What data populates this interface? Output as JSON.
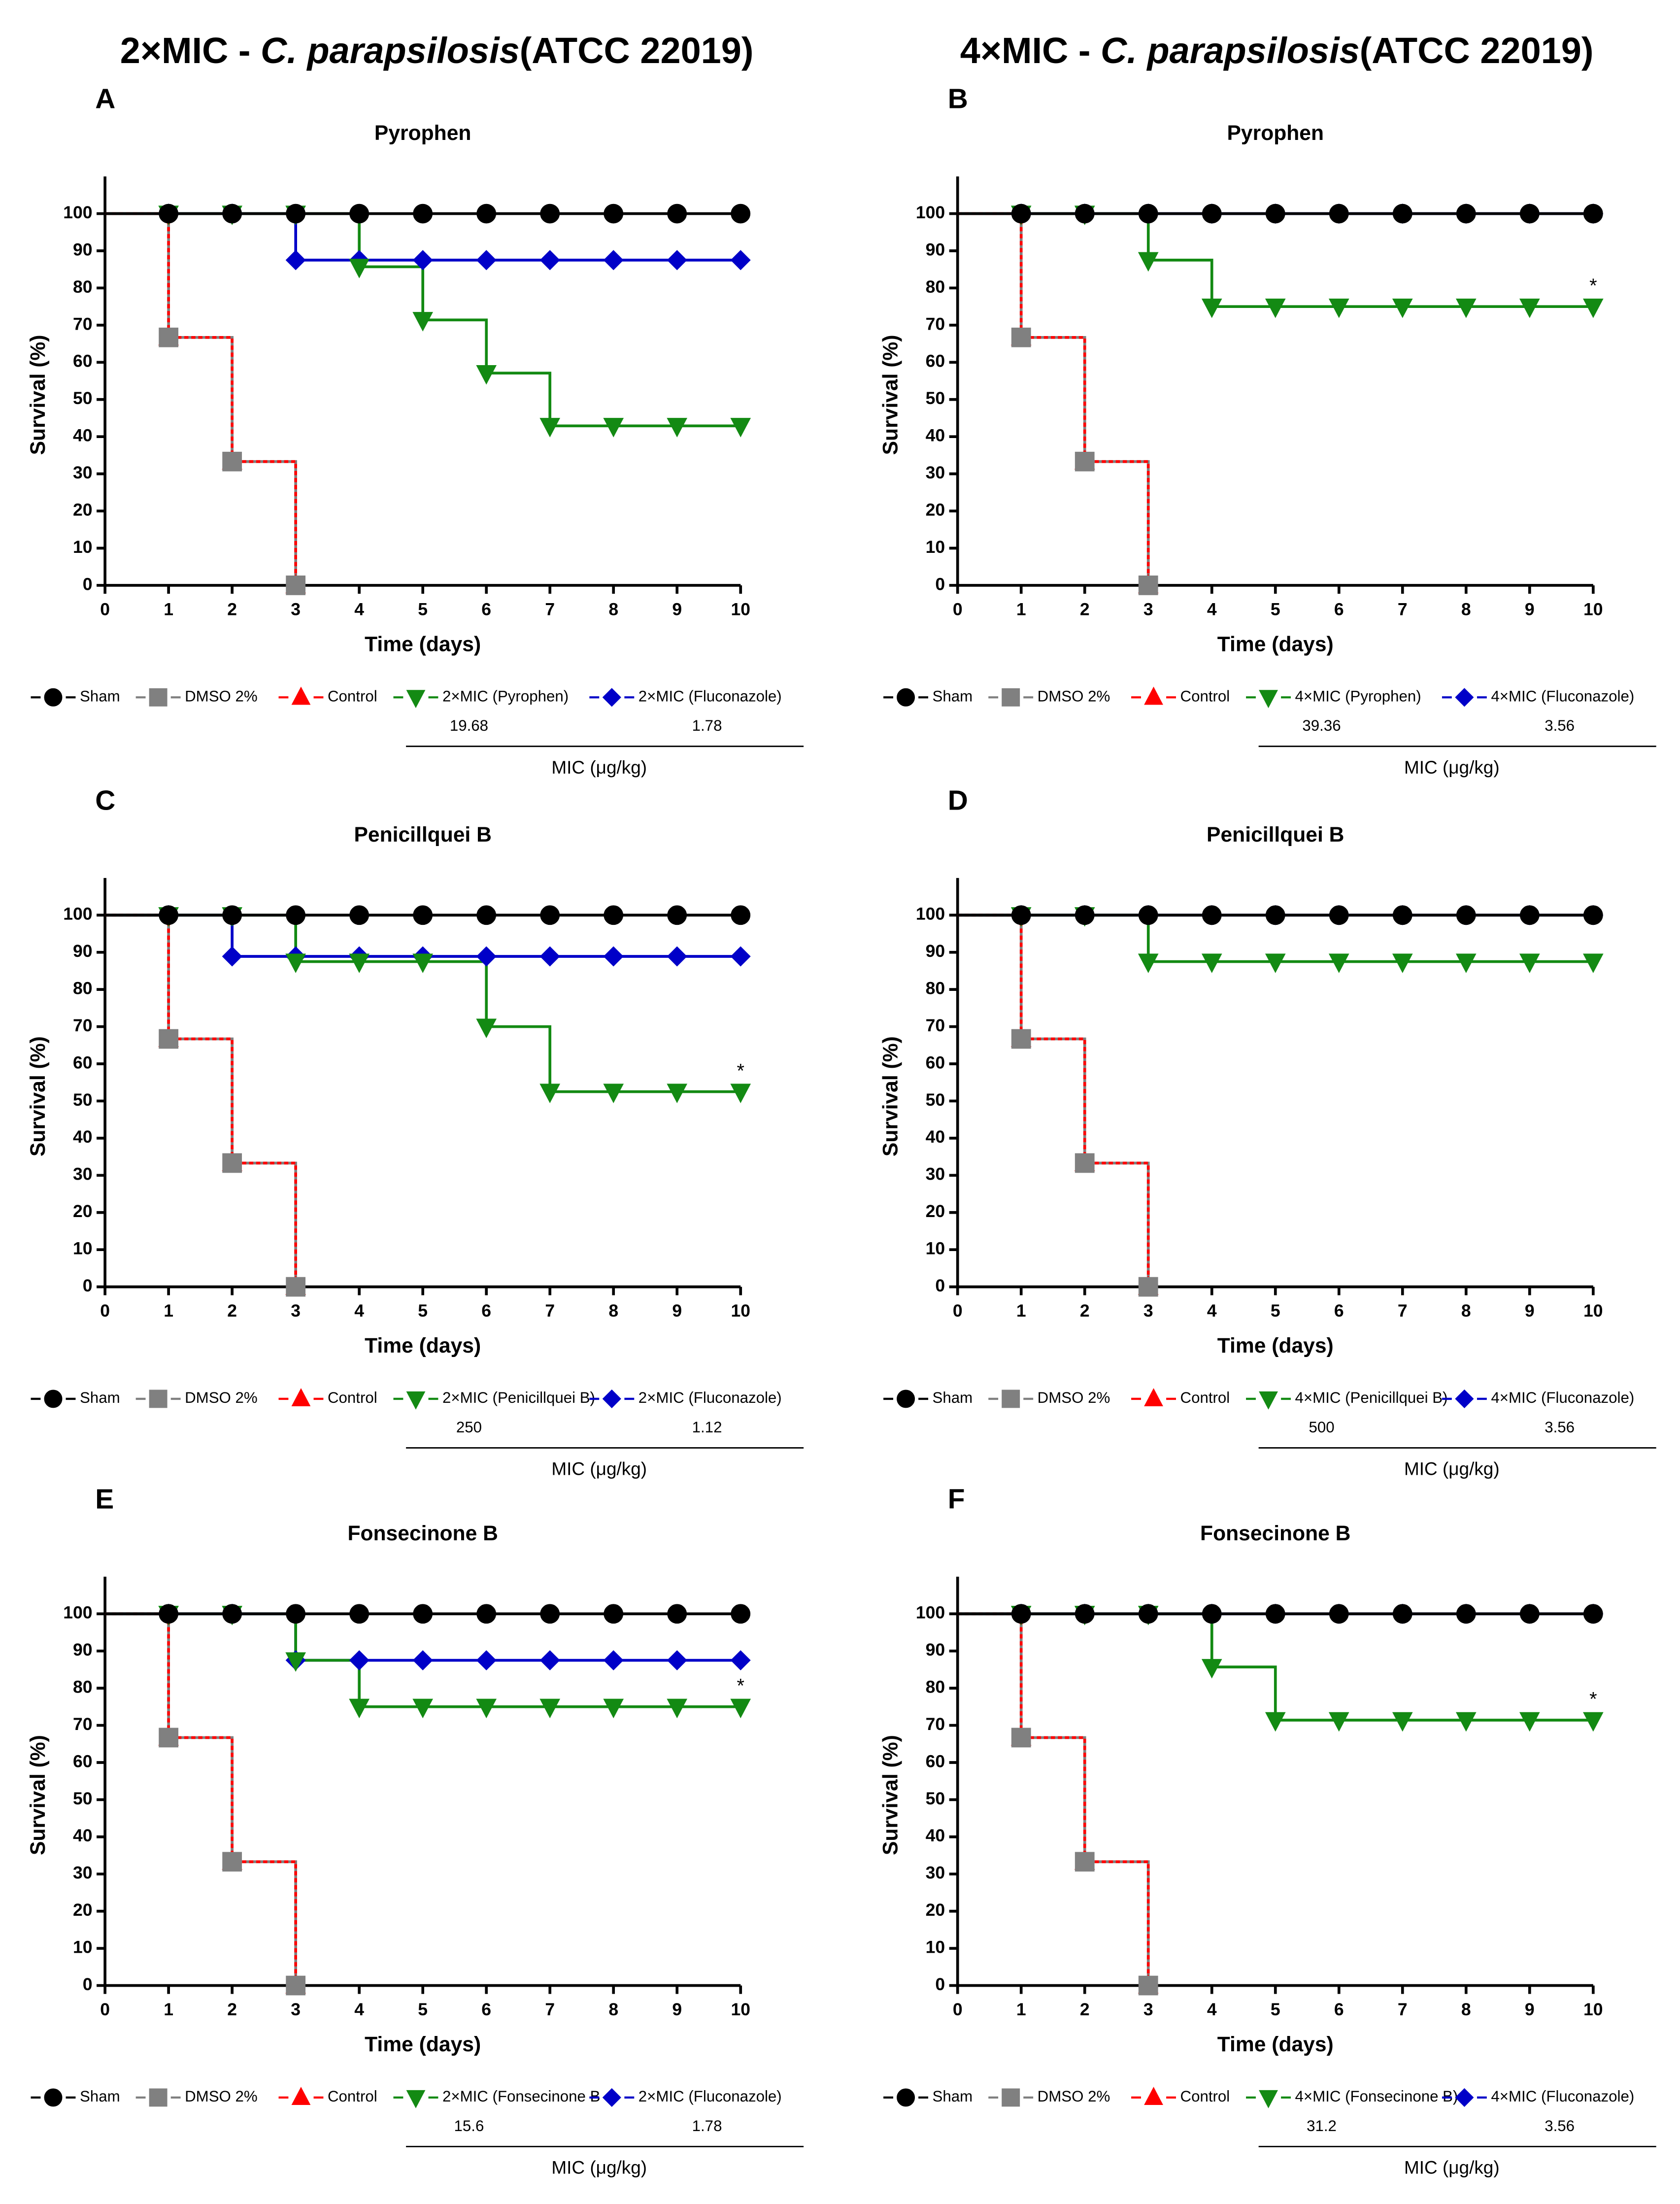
{
  "column_titles": [
    [
      "2×MIC - ",
      "C. parapsilosis",
      "(ATCC 22019)"
    ],
    [
      "4×MIC - ",
      "C. parapsilosis",
      "(ATCC 22019)"
    ]
  ],
  "chart_data": [
    {
      "type": "line",
      "panel": "A",
      "title": "Pyrophen",
      "xlabel": "Time (days)",
      "ylabel": "Survival (%)",
      "x": [
        0,
        1,
        2,
        3,
        4,
        5,
        6,
        7,
        8,
        9,
        10
      ],
      "xlim": [
        0,
        10
      ],
      "xticks": [
        0,
        1,
        2,
        3,
        4,
        5,
        6,
        7,
        8,
        9,
        10
      ],
      "ylim": [
        0,
        110
      ],
      "yticks": [
        0,
        10,
        20,
        30,
        40,
        50,
        60,
        70,
        80,
        90,
        100
      ],
      "series": [
        {
          "name": "Sham",
          "color": "#000000",
          "marker": "circle",
          "values": [
            100,
            100,
            100,
            100,
            100,
            100,
            100,
            100,
            100,
            100,
            100
          ]
        },
        {
          "name": "DMSO 2%",
          "color": "#808080",
          "marker": "square",
          "values": [
            100,
            66.7,
            33.3,
            0,
            null,
            null,
            null,
            null,
            null,
            null,
            null
          ]
        },
        {
          "name": "Control",
          "color": "#ff0000",
          "marker": "triangle-up",
          "linestyle": "dashed",
          "values": [
            100,
            66.7,
            33.3,
            0,
            null,
            null,
            null,
            null,
            null,
            null,
            null
          ]
        },
        {
          "name": "2×MIC (Pyrophen)",
          "color": "#138a13",
          "marker": "triangle-down",
          "values": [
            100,
            100,
            100,
            100,
            85.7,
            71.4,
            57.1,
            42.9,
            42.9,
            42.9,
            42.9
          ]
        },
        {
          "name": "2×MIC (Fluconazole)",
          "color": "#0000c8",
          "marker": "diamond",
          "values": [
            100,
            100,
            100,
            87.5,
            87.5,
            87.5,
            87.5,
            87.5,
            87.5,
            87.5,
            87.5
          ]
        }
      ],
      "mic_values": [
        19.68,
        1.78
      ],
      "mic_label": "MIC (μg/kg)"
    },
    {
      "type": "line",
      "panel": "B",
      "title": "Pyrophen",
      "xlabel": "Time (days)",
      "ylabel": "Survival (%)",
      "x": [
        0,
        1,
        2,
        3,
        4,
        5,
        6,
        7,
        8,
        9,
        10
      ],
      "xlim": [
        0,
        10
      ],
      "xticks": [
        0,
        1,
        2,
        3,
        4,
        5,
        6,
        7,
        8,
        9,
        10
      ],
      "ylim": [
        0,
        110
      ],
      "yticks": [
        0,
        10,
        20,
        30,
        40,
        50,
        60,
        70,
        80,
        90,
        100
      ],
      "series": [
        {
          "name": "Sham",
          "color": "#000000",
          "marker": "circle",
          "values": [
            100,
            100,
            100,
            100,
            100,
            100,
            100,
            100,
            100,
            100,
            100
          ]
        },
        {
          "name": "DMSO 2%",
          "color": "#808080",
          "marker": "square",
          "values": [
            100,
            66.7,
            33.3,
            0,
            null,
            null,
            null,
            null,
            null,
            null,
            null
          ]
        },
        {
          "name": "Control",
          "color": "#ff0000",
          "marker": "triangle-up",
          "linestyle": "dashed",
          "values": [
            100,
            66.7,
            33.3,
            0,
            null,
            null,
            null,
            null,
            null,
            null,
            null
          ]
        },
        {
          "name": "4×MIC (Pyrophen)",
          "color": "#138a13",
          "marker": "triangle-down",
          "values": [
            100,
            100,
            100,
            87.5,
            75,
            75,
            75,
            75,
            75,
            75,
            75
          ]
        },
        {
          "name": "4×MIC (Fluconazole)",
          "color": "#0000c8",
          "marker": "diamond",
          "values": [
            100,
            100,
            100,
            100,
            100,
            100,
            100,
            100,
            100,
            100,
            100
          ]
        }
      ],
      "mic_values": [
        39.36,
        3.56
      ],
      "mic_label": "MIC (μg/kg)",
      "annotations": [
        {
          "text": "*",
          "x": 10,
          "y": 75
        }
      ]
    },
    {
      "type": "line",
      "panel": "C",
      "title": "Penicillquei B",
      "xlabel": "Time (days)",
      "ylabel": "Survival (%)",
      "x": [
        0,
        1,
        2,
        3,
        4,
        5,
        6,
        7,
        8,
        9,
        10
      ],
      "xlim": [
        0,
        10
      ],
      "xticks": [
        0,
        1,
        2,
        3,
        4,
        5,
        6,
        7,
        8,
        9,
        10
      ],
      "ylim": [
        0,
        110
      ],
      "yticks": [
        0,
        10,
        20,
        30,
        40,
        50,
        60,
        70,
        80,
        90,
        100
      ],
      "series": [
        {
          "name": "Sham",
          "color": "#000000",
          "marker": "circle",
          "values": [
            100,
            100,
            100,
            100,
            100,
            100,
            100,
            100,
            100,
            100,
            100
          ]
        },
        {
          "name": "DMSO 2%",
          "color": "#808080",
          "marker": "square",
          "values": [
            100,
            66.7,
            33.3,
            0,
            null,
            null,
            null,
            null,
            null,
            null,
            null
          ]
        },
        {
          "name": "Control",
          "color": "#ff0000",
          "marker": "triangle-up",
          "linestyle": "dashed",
          "values": [
            100,
            66.7,
            33.3,
            0,
            null,
            null,
            null,
            null,
            null,
            null,
            null
          ]
        },
        {
          "name": "2×MIC (Penicillquei B)",
          "color": "#138a13",
          "marker": "triangle-down",
          "values": [
            100,
            100,
            100,
            87.5,
            87.5,
            87.5,
            70,
            52.5,
            52.5,
            52.5,
            52.5
          ]
        },
        {
          "name": "2×MIC (Fluconazole)",
          "color": "#0000c8",
          "marker": "diamond",
          "values": [
            100,
            100,
            88.9,
            88.9,
            88.9,
            88.9,
            88.9,
            88.9,
            88.9,
            88.9,
            88.9
          ]
        }
      ],
      "mic_values": [
        250,
        1.12
      ],
      "mic_label": "MIC (μg/kg)",
      "annotations": [
        {
          "text": "*",
          "x": 10,
          "y": 52.5
        }
      ]
    },
    {
      "type": "line",
      "panel": "D",
      "title": "Penicillquei B",
      "xlabel": "Time (days)",
      "ylabel": "Survival (%)",
      "x": [
        0,
        1,
        2,
        3,
        4,
        5,
        6,
        7,
        8,
        9,
        10
      ],
      "xlim": [
        0,
        10
      ],
      "xticks": [
        0,
        1,
        2,
        3,
        4,
        5,
        6,
        7,
        8,
        9,
        10
      ],
      "ylim": [
        0,
        110
      ],
      "yticks": [
        0,
        10,
        20,
        30,
        40,
        50,
        60,
        70,
        80,
        90,
        100
      ],
      "series": [
        {
          "name": "Sham",
          "color": "#000000",
          "marker": "circle",
          "values": [
            100,
            100,
            100,
            100,
            100,
            100,
            100,
            100,
            100,
            100,
            100
          ]
        },
        {
          "name": "DMSO 2%",
          "color": "#808080",
          "marker": "square",
          "values": [
            100,
            66.7,
            33.3,
            0,
            null,
            null,
            null,
            null,
            null,
            null,
            null
          ]
        },
        {
          "name": "Control",
          "color": "#ff0000",
          "marker": "triangle-up",
          "linestyle": "dashed",
          "values": [
            100,
            66.7,
            33.3,
            0,
            null,
            null,
            null,
            null,
            null,
            null,
            null
          ]
        },
        {
          "name": "4×MIC (Penicillquei B)",
          "color": "#138a13",
          "marker": "triangle-down",
          "values": [
            100,
            100,
            100,
            87.5,
            87.5,
            87.5,
            87.5,
            87.5,
            87.5,
            87.5,
            87.5
          ]
        },
        {
          "name": "4×MIC (Fluconazole)",
          "color": "#0000c8",
          "marker": "diamond",
          "values": [
            100,
            100,
            100,
            100,
            100,
            100,
            100,
            100,
            100,
            100,
            100
          ]
        }
      ],
      "mic_values": [
        500,
        3.56
      ],
      "mic_label": "MIC (μg/kg)"
    },
    {
      "type": "line",
      "panel": "E",
      "title": "Fonsecinone B",
      "xlabel": "Time (days)",
      "ylabel": "Survival (%)",
      "x": [
        0,
        1,
        2,
        3,
        4,
        5,
        6,
        7,
        8,
        9,
        10
      ],
      "xlim": [
        0,
        10
      ],
      "xticks": [
        0,
        1,
        2,
        3,
        4,
        5,
        6,
        7,
        8,
        9,
        10
      ],
      "ylim": [
        0,
        110
      ],
      "yticks": [
        0,
        10,
        20,
        30,
        40,
        50,
        60,
        70,
        80,
        90,
        100
      ],
      "series": [
        {
          "name": "Sham",
          "color": "#000000",
          "marker": "circle",
          "values": [
            100,
            100,
            100,
            100,
            100,
            100,
            100,
            100,
            100,
            100,
            100
          ]
        },
        {
          "name": "DMSO 2%",
          "color": "#808080",
          "marker": "square",
          "values": [
            100,
            66.7,
            33.3,
            0,
            null,
            null,
            null,
            null,
            null,
            null,
            null
          ]
        },
        {
          "name": "Control",
          "color": "#ff0000",
          "marker": "triangle-up",
          "linestyle": "dashed",
          "values": [
            100,
            66.7,
            33.3,
            0,
            null,
            null,
            null,
            null,
            null,
            null,
            null
          ]
        },
        {
          "name": "2×MIC (Fonsecinone B",
          "color": "#138a13",
          "marker": "triangle-down",
          "values": [
            100,
            100,
            100,
            87.5,
            75,
            75,
            75,
            75,
            75,
            75,
            75
          ]
        },
        {
          "name": "2×MIC (Fluconazole)",
          "color": "#0000c8",
          "marker": "diamond",
          "values": [
            100,
            100,
            100,
            87.5,
            87.5,
            87.5,
            87.5,
            87.5,
            87.5,
            87.5,
            87.5
          ]
        }
      ],
      "mic_values": [
        15.6,
        1.78
      ],
      "mic_label": "MIC (μg/kg)",
      "annotations": [
        {
          "text": "*",
          "x": 10,
          "y": 75
        }
      ]
    },
    {
      "type": "line",
      "panel": "F",
      "title": "Fonsecinone B",
      "xlabel": "Time (days)",
      "ylabel": "Survival (%)",
      "x": [
        0,
        1,
        2,
        3,
        4,
        5,
        6,
        7,
        8,
        9,
        10
      ],
      "xlim": [
        0,
        10
      ],
      "xticks": [
        0,
        1,
        2,
        3,
        4,
        5,
        6,
        7,
        8,
        9,
        10
      ],
      "ylim": [
        0,
        110
      ],
      "yticks": [
        0,
        10,
        20,
        30,
        40,
        50,
        60,
        70,
        80,
        90,
        100
      ],
      "series": [
        {
          "name": "Sham",
          "color": "#000000",
          "marker": "circle",
          "values": [
            100,
            100,
            100,
            100,
            100,
            100,
            100,
            100,
            100,
            100,
            100
          ]
        },
        {
          "name": "DMSO 2%",
          "color": "#808080",
          "marker": "square",
          "values": [
            100,
            66.7,
            33.3,
            0,
            null,
            null,
            null,
            null,
            null,
            null,
            null
          ]
        },
        {
          "name": "Control",
          "color": "#ff0000",
          "marker": "triangle-up",
          "linestyle": "dashed",
          "values": [
            100,
            66.7,
            33.3,
            0,
            null,
            null,
            null,
            null,
            null,
            null,
            null
          ]
        },
        {
          "name": "4×MIC (Fonsecinone B)",
          "color": "#138a13",
          "marker": "triangle-down",
          "values": [
            100,
            100,
            100,
            100,
            85.7,
            71.4,
            71.4,
            71.4,
            71.4,
            71.4,
            71.4
          ]
        },
        {
          "name": "4×MIC (Fluconazole)",
          "color": "#0000c8",
          "marker": "diamond",
          "values": [
            100,
            100,
            100,
            100,
            100,
            100,
            100,
            100,
            100,
            100,
            100
          ]
        }
      ],
      "mic_values": [
        31.2,
        3.56
      ],
      "mic_label": "MIC (μg/kg)",
      "annotations": [
        {
          "text": "*",
          "x": 10,
          "y": 71.4
        }
      ]
    }
  ]
}
